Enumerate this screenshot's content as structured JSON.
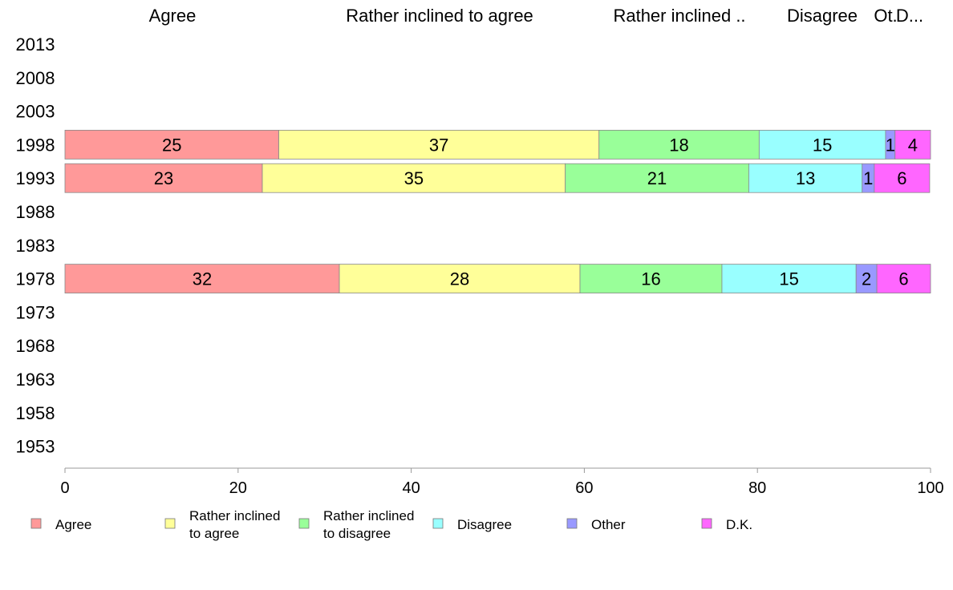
{
  "chart_data": {
    "type": "bar",
    "orientation": "horizontal",
    "stacked": true,
    "title": "",
    "xlabel": "",
    "ylabel": "",
    "xlim": [
      0,
      100
    ],
    "x_ticks": [
      "0",
      "20",
      "40",
      "60",
      "80",
      "100"
    ],
    "grid": false,
    "legend_position": "bottom",
    "categories": [
      "2013",
      "2008",
      "2003",
      "1998",
      "1993",
      "1988",
      "1983",
      "1978",
      "1973",
      "1968",
      "1963",
      "1958",
      "1953"
    ],
    "top_labels": [
      "Agree",
      "Rather inclined to agree",
      "Rather inclined ..",
      "Disagree",
      "Ot.",
      "D..."
    ],
    "series": [
      {
        "name": "Agree",
        "legend_lines": [
          "Agree"
        ],
        "color": "#ff9999",
        "values": [
          null,
          null,
          null,
          24.7,
          22.8,
          null,
          null,
          31.7,
          null,
          null,
          null,
          null,
          null
        ],
        "labels": [
          "",
          "",
          "",
          "25",
          "23",
          "",
          "",
          "32",
          "",
          "",
          "",
          "",
          ""
        ]
      },
      {
        "name": "Rather inclined to agree",
        "legend_lines": [
          "Rather inclined",
          "to agree"
        ],
        "color": "#ffff99",
        "values": [
          null,
          null,
          null,
          37.0,
          35.0,
          null,
          null,
          27.8,
          null,
          null,
          null,
          null,
          null
        ],
        "labels": [
          "",
          "",
          "",
          "37",
          "35",
          "",
          "",
          "28",
          "",
          "",
          "",
          "",
          ""
        ]
      },
      {
        "name": "Rather inclined to disagree",
        "legend_lines": [
          "Rather inclined",
          "to disagree"
        ],
        "color": "#99ff99",
        "values": [
          null,
          null,
          null,
          18.5,
          21.2,
          null,
          null,
          16.4,
          null,
          null,
          null,
          null,
          null
        ],
        "labels": [
          "",
          "",
          "",
          "18",
          "21",
          "",
          "",
          "16",
          "",
          "",
          "",
          "",
          ""
        ]
      },
      {
        "name": "Disagree",
        "legend_lines": [
          "Disagree"
        ],
        "color": "#99ffff",
        "values": [
          null,
          null,
          null,
          14.6,
          13.1,
          null,
          null,
          15.5,
          null,
          null,
          null,
          null,
          null
        ],
        "labels": [
          "",
          "",
          "",
          "15",
          "13",
          "",
          "",
          "15",
          "",
          "",
          "",
          "",
          ""
        ]
      },
      {
        "name": "Other",
        "legend_lines": [
          "Other"
        ],
        "color": "#9999ff",
        "values": [
          null,
          null,
          null,
          1.1,
          1.4,
          null,
          null,
          2.4,
          null,
          null,
          null,
          null,
          null
        ],
        "labels": [
          "",
          "",
          "",
          "1",
          "1",
          "",
          "",
          "2",
          "",
          "",
          "",
          "",
          ""
        ]
      },
      {
        "name": "D.K.",
        "legend_lines": [
          "D.K."
        ],
        "color": "#ff66ff",
        "values": [
          null,
          null,
          null,
          4.1,
          6.4,
          null,
          null,
          6.2,
          null,
          null,
          null,
          null,
          null
        ],
        "labels": [
          "",
          "",
          "",
          "4",
          "6",
          "",
          "",
          "6",
          "",
          "",
          "",
          "",
          ""
        ]
      }
    ]
  }
}
